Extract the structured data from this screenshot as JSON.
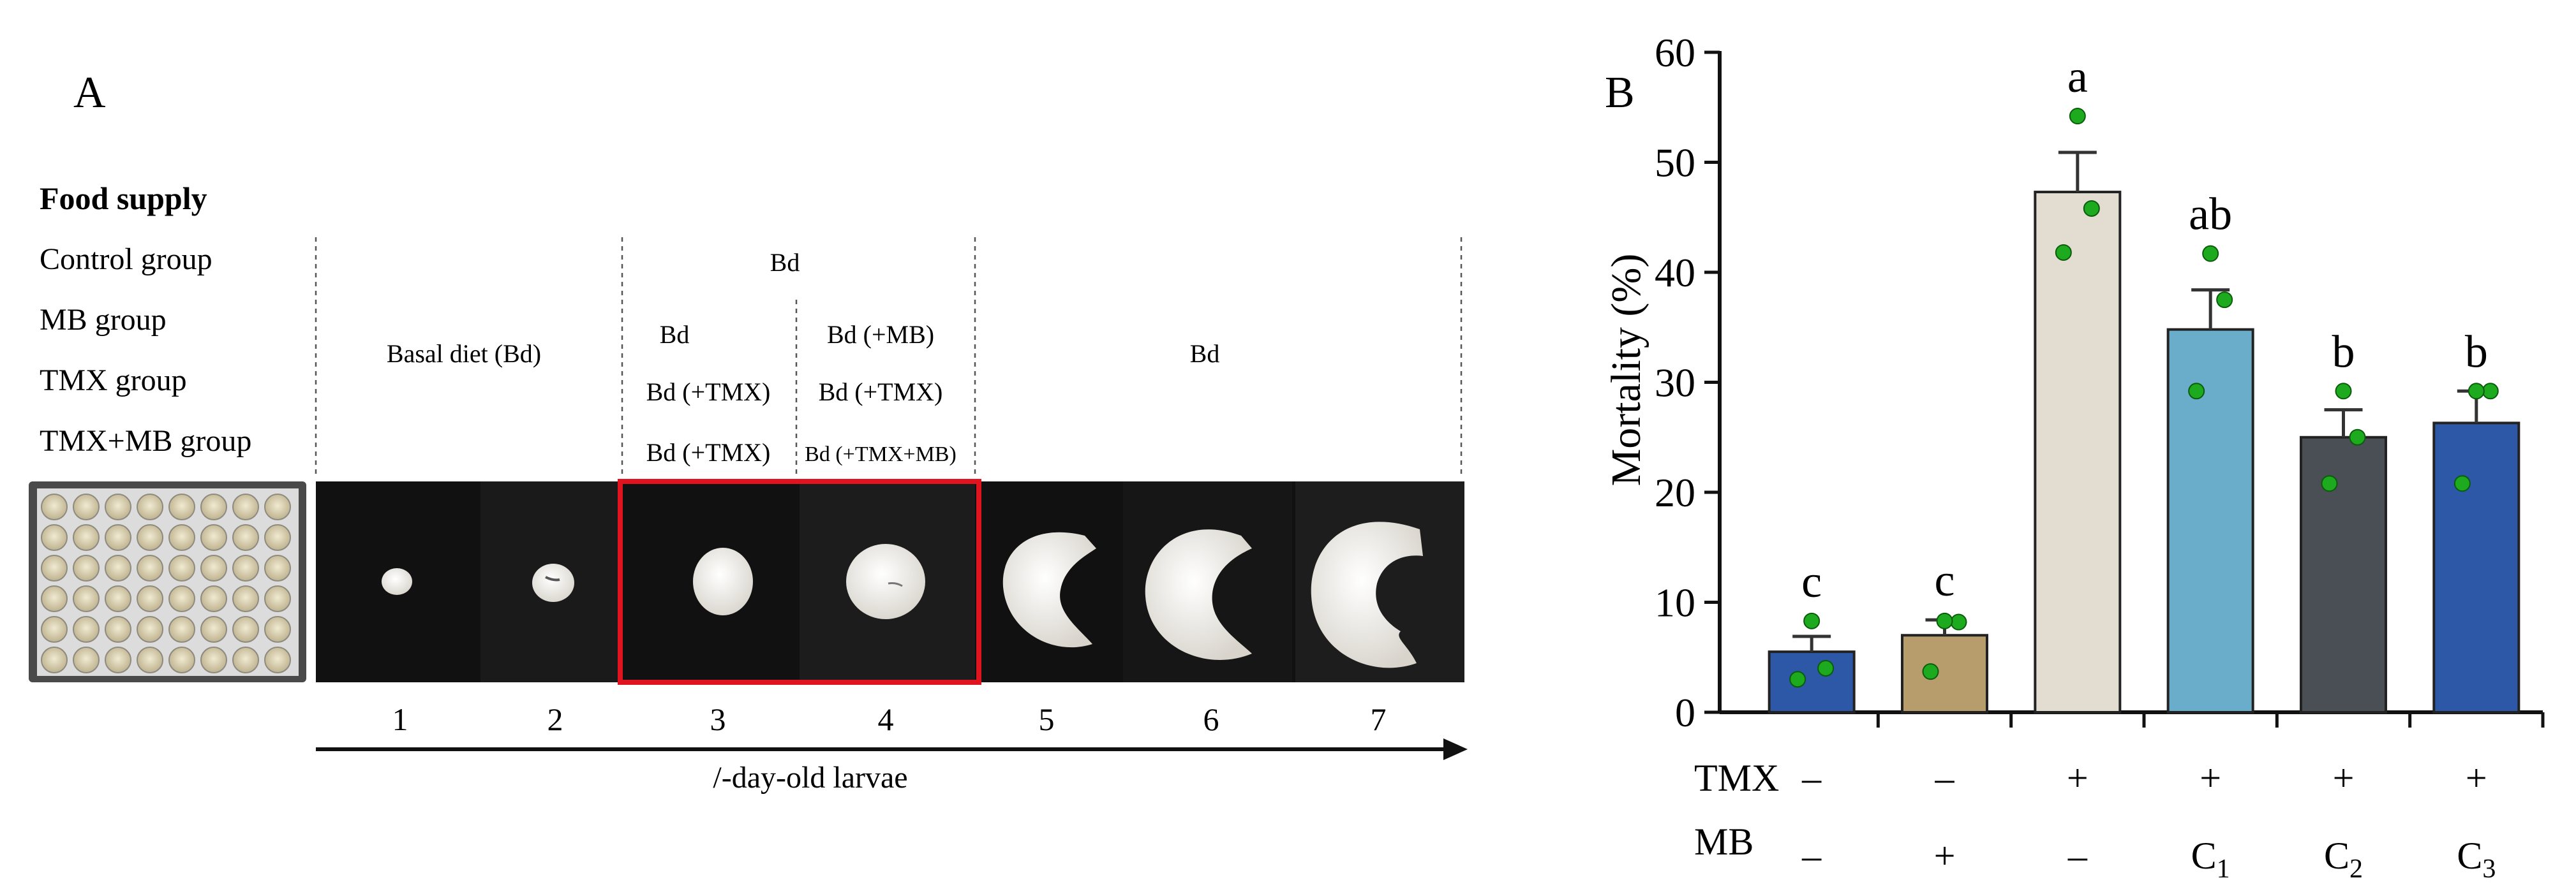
{
  "panel_a": {
    "letter": "A",
    "row_header": "Food supply",
    "groups": [
      "Control group",
      "MB group",
      "TMX group",
      "TMX+MB group"
    ],
    "phase1_label": "Basal diet (Bd)",
    "phase2_top": "Bd",
    "phase2_col3": [
      "Bd",
      "Bd (+TMX)",
      "Bd (+TMX)"
    ],
    "phase2_col4": [
      "Bd (+MB)",
      "Bd (+TMX)",
      "Bd (+TMX+MB)"
    ],
    "phase3_label": "Bd",
    "days": [
      "1",
      "2",
      "3",
      "4",
      "5",
      "6",
      "7"
    ],
    "arrow_label": "/-day-old larvae",
    "highlight_color": "#e0141e"
  },
  "chart_data": {
    "type": "bar",
    "panel_letter": "B",
    "ylabel": "Mortality (%)",
    "ylim": [
      0,
      60
    ],
    "yticks": [
      "0",
      "10",
      "20",
      "30",
      "40",
      "50",
      "60"
    ],
    "grid": false,
    "values": [
      5.5,
      7.0,
      47.3,
      34.8,
      25.0,
      26.3
    ],
    "errors": [
      1.4,
      1.4,
      3.6,
      3.6,
      2.5,
      2.9
    ],
    "points": [
      [
        3.0,
        4.0,
        8.3
      ],
      [
        3.7,
        8.2,
        8.3
      ],
      [
        41.8,
        45.8,
        54.2
      ],
      [
        29.2,
        37.5,
        41.7
      ],
      [
        20.8,
        25.0,
        29.2
      ],
      [
        20.8,
        29.2,
        29.2
      ]
    ],
    "letters": [
      "c",
      "c",
      "a",
      "ab",
      "b",
      "b"
    ],
    "bar_colors": [
      "#2d58a8",
      "#b79c6c",
      "#e3ddd1",
      "#6aadca",
      "#4a4f55",
      "#2d58a8"
    ],
    "point_color": "#1eaa1e",
    "factor_rows": [
      {
        "label": "TMX",
        "signs": [
          "–",
          "–",
          "+",
          "+",
          "+",
          "+"
        ]
      },
      {
        "label": "MB",
        "signs": [
          "–",
          "+",
          "–",
          "C",
          "C",
          "C"
        ],
        "subscripts": [
          "",
          "",
          "",
          "1",
          "2",
          "3"
        ]
      }
    ]
  }
}
